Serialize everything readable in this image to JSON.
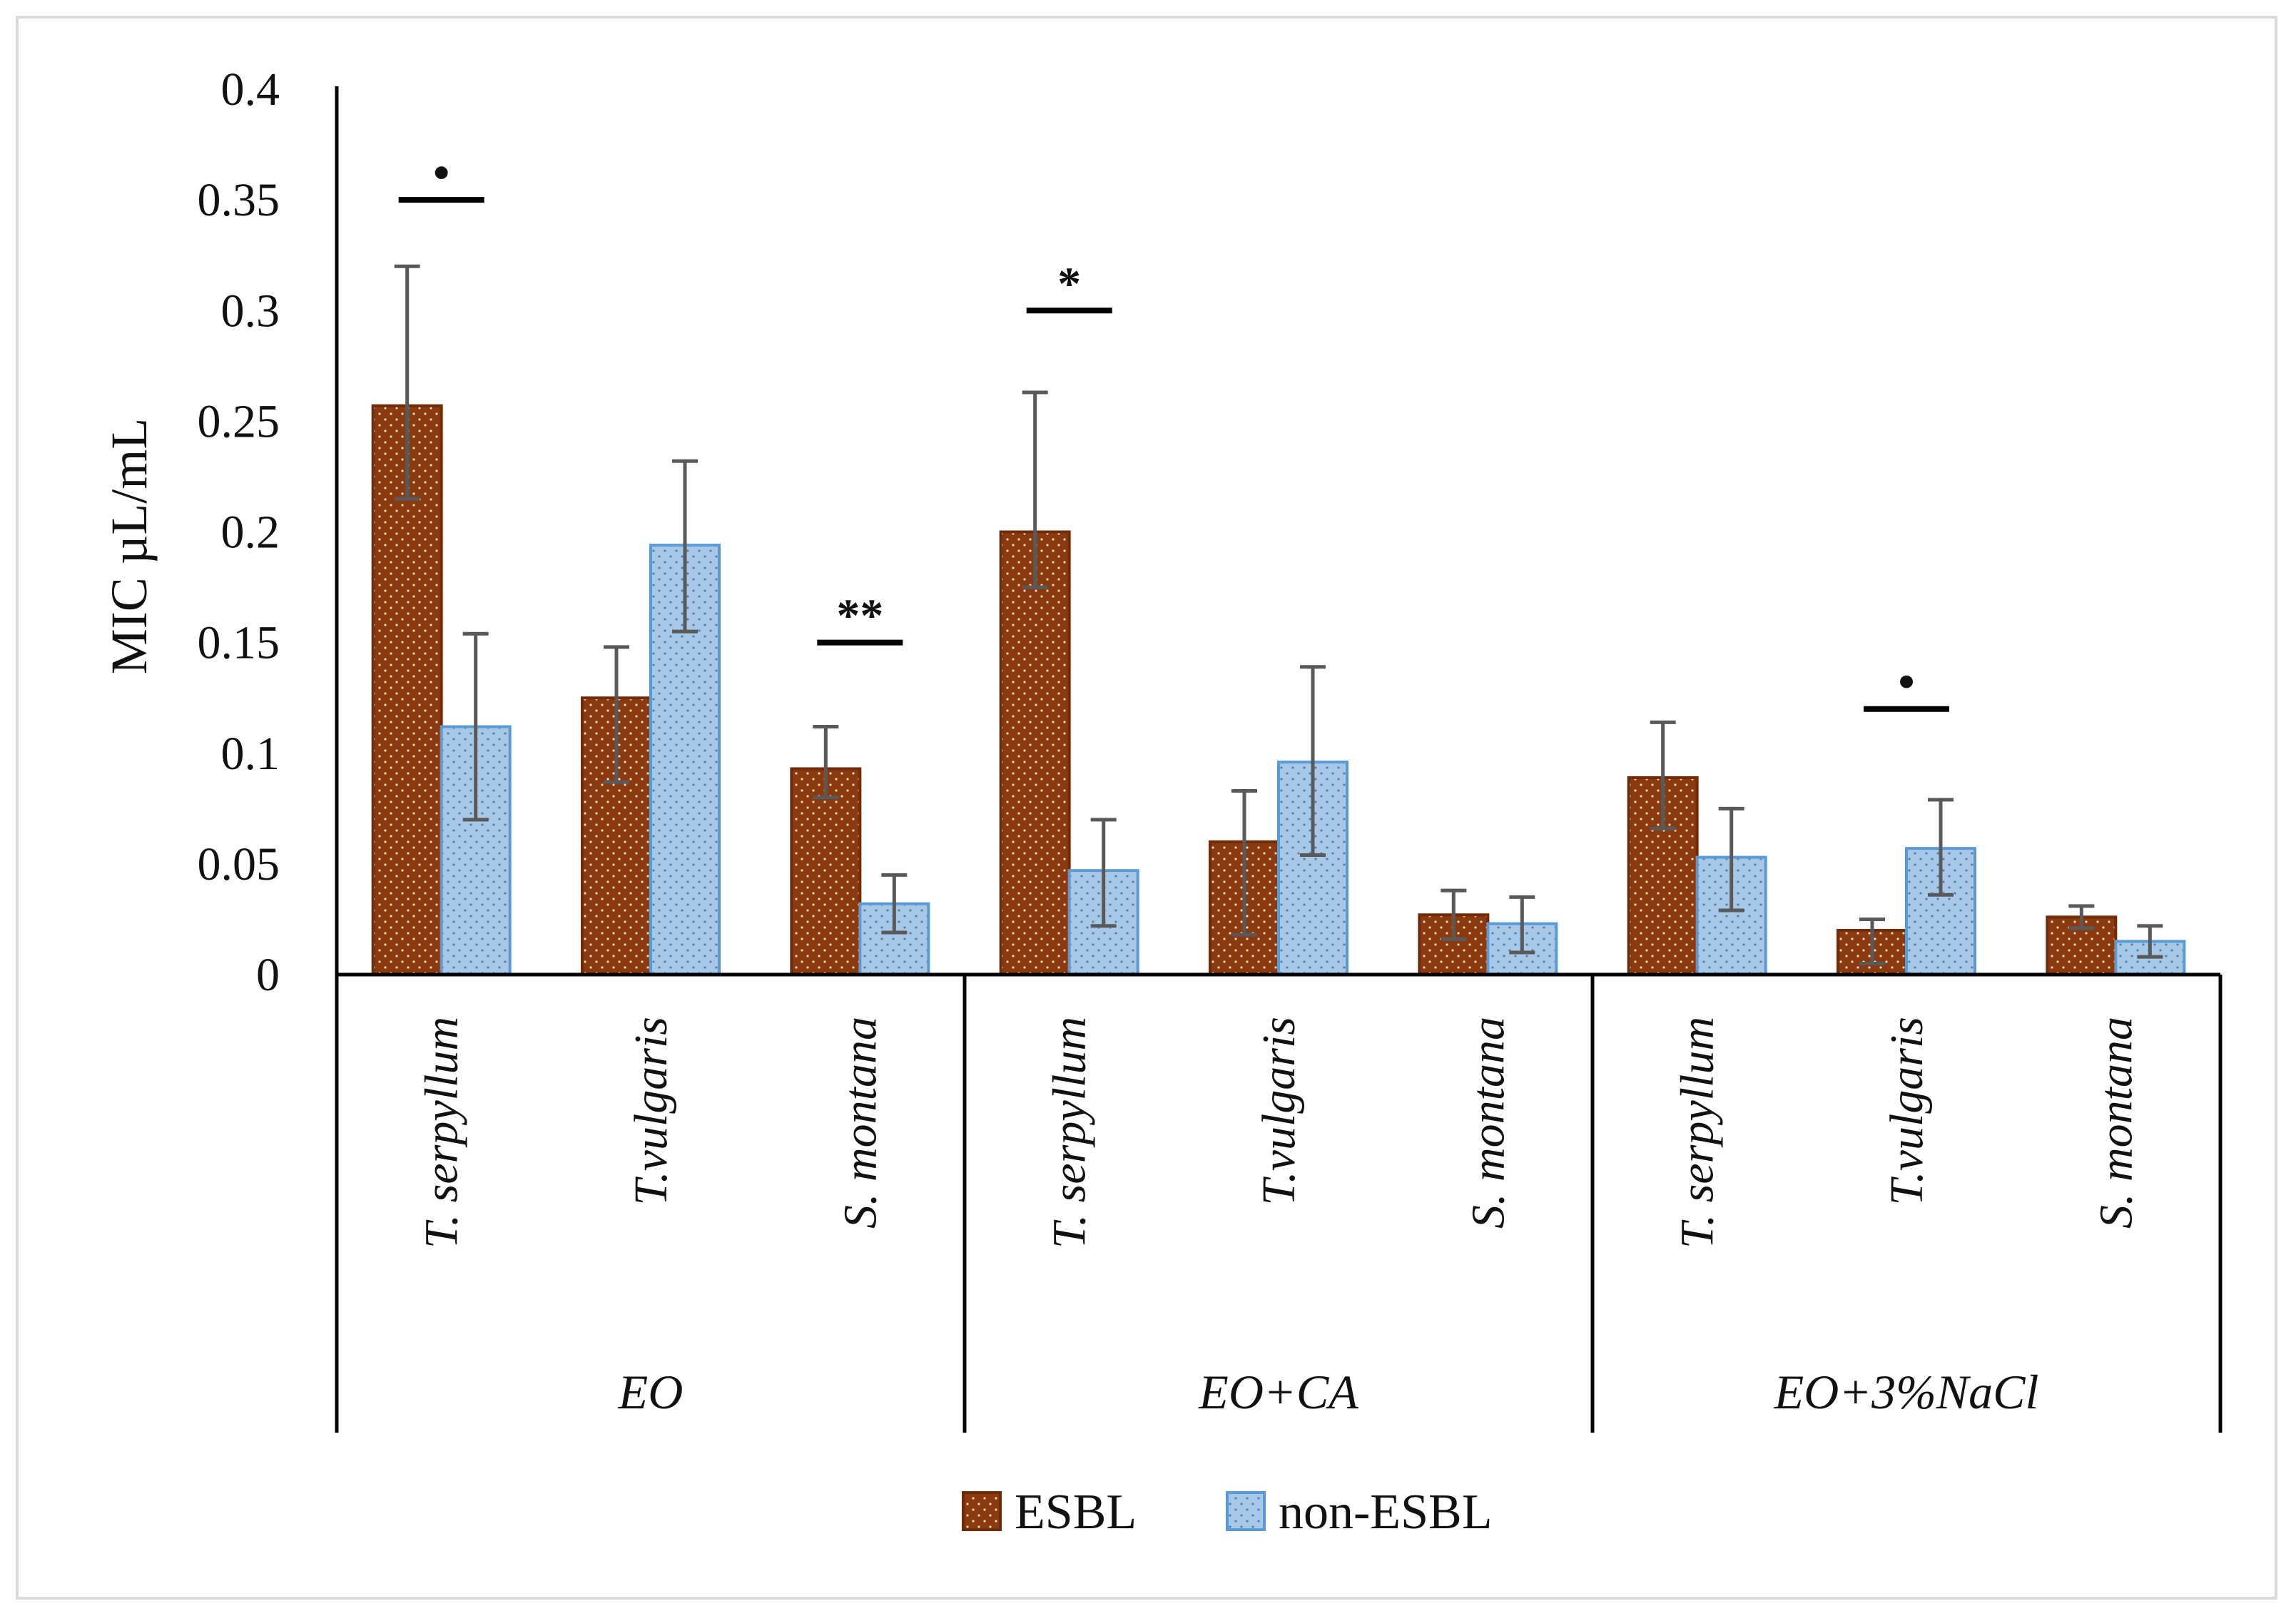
{
  "chart_data": {
    "type": "bar",
    "title": "",
    "ylabel": "MIC µL/mL",
    "xlabel": "",
    "ylim": [
      0,
      0.4
    ],
    "yticks": [
      "0",
      "0.05",
      "0.1",
      "0.15",
      "0.2",
      "0.25",
      "0.3",
      "0.35",
      "0.4"
    ],
    "grid": false,
    "legend_position": "bottom",
    "groups": [
      {
        "label": "EO",
        "categories": [
          "T. serpyllum",
          "T.vulgaris",
          "S. montana"
        ]
      },
      {
        "label": "EO+CA",
        "categories": [
          "T. serpyllum",
          "T.vulgaris",
          "S. montana"
        ]
      },
      {
        "label": "EO+3%NaCl",
        "categories": [
          "T. serpyllum",
          "T.vulgaris",
          "S. montana"
        ]
      }
    ],
    "categories": [
      "T. serpyllum",
      "T.vulgaris",
      "S. montana",
      "T. serpyllum",
      "T.vulgaris",
      "S. montana",
      "T. serpyllum",
      "T.vulgaris",
      "S. montana"
    ],
    "series": [
      {
        "name": "ESBL",
        "color": "#8B3A0F",
        "values": [
          0.257,
          0.125,
          0.093,
          0.2,
          0.06,
          0.027,
          0.089,
          0.02,
          0.026
        ],
        "err_low": [
          0.215,
          0.087,
          0.08,
          0.175,
          0.018,
          0.016,
          0.066,
          0.005,
          0.021
        ],
        "err_high": [
          0.32,
          0.148,
          0.112,
          0.263,
          0.083,
          0.038,
          0.114,
          0.025,
          0.031
        ]
      },
      {
        "name": "non-ESBL",
        "color": "#A8C8E8",
        "values": [
          0.112,
          0.194,
          0.032,
          0.047,
          0.096,
          0.023,
          0.053,
          0.057,
          0.015
        ],
        "err_low": [
          0.07,
          0.155,
          0.019,
          0.022,
          0.054,
          0.01,
          0.029,
          0.036,
          0.008
        ],
        "err_high": [
          0.154,
          0.232,
          0.045,
          0.07,
          0.139,
          0.035,
          0.075,
          0.079,
          0.022
        ]
      }
    ],
    "annotations": [
      {
        "category_index": 0,
        "y": 0.35,
        "symbol": "•"
      },
      {
        "category_index": 2,
        "y": 0.15,
        "symbol": "**"
      },
      {
        "category_index": 3,
        "y": 0.3,
        "symbol": "*"
      },
      {
        "category_index": 7,
        "y": 0.12,
        "symbol": "•"
      }
    ]
  }
}
